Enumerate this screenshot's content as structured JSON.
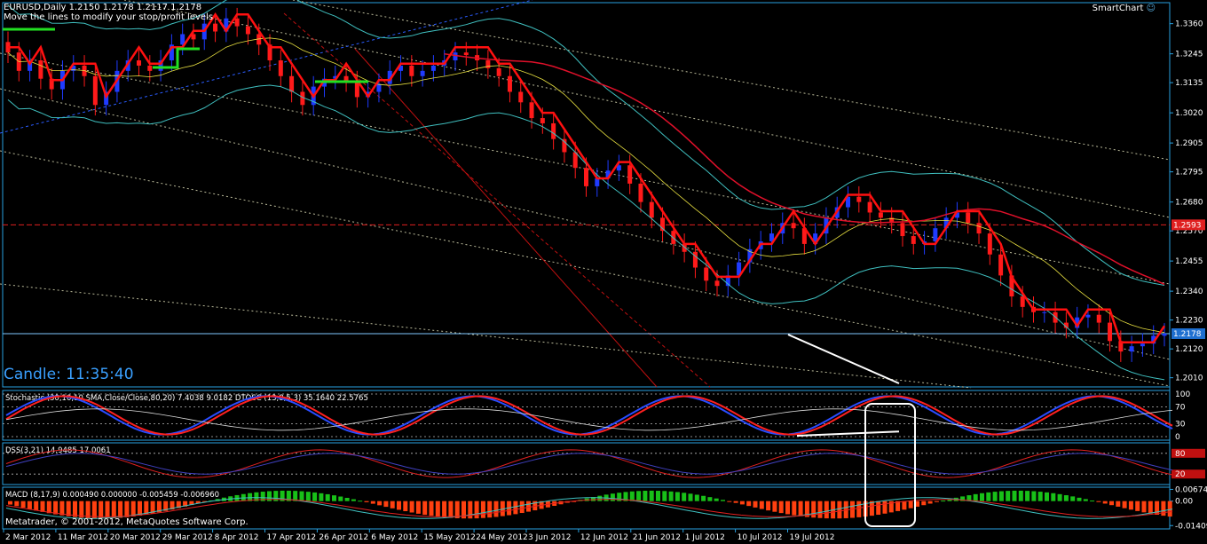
{
  "header": {
    "symbol_line": "EURUSD,Daily  1.2150 1.2178 1.2117 1.2178",
    "hint": "Move the lines to modify your stop/profit levels",
    "smartchart": "SmartChart"
  },
  "candle_timer": "Candle:  11:35:40",
  "copyright": "Metatrader, © 2001-2012, MetaQuotes Software Corp.",
  "colors": {
    "background": "#000000",
    "frame": "#29a0e0",
    "bull": "#1f3bff",
    "bear": "#ff1a1a",
    "trend_red": "#ff1010",
    "trend_green": "#22e022",
    "bands": "#3fbfbf",
    "ma_red": "#e0102a",
    "dotted": "#e8e8c0"
  },
  "chart_data": [
    {
      "type": "line",
      "title": "EURUSD,Daily",
      "price_ticks": [
        "1.3360",
        "1.3245",
        "1.3135",
        "1.3020",
        "1.2905",
        "1.2795",
        "1.2680",
        "1.2570",
        "1.2455",
        "1.2340",
        "1.2230",
        "1.2120",
        "1.2010"
      ],
      "price_ticks_values": [
        1.336,
        1.3245,
        1.3135,
        1.302,
        1.2905,
        1.2795,
        1.268,
        1.257,
        1.2455,
        1.234,
        1.223,
        1.212,
        1.201
      ],
      "ylim": [
        1.1975,
        1.344
      ],
      "date_ticks": [
        "2 Mar 2012",
        "11 Mar 2012",
        "20 Mar 2012",
        "29 Mar 2012",
        "8 Apr 2012",
        "17 Apr 2012",
        "26 Apr 2012",
        "6 May 2012",
        "15 May 2012",
        "24 May 2012",
        "3 Jun 2012",
        "12 Jun 2012",
        "21 Jun 2012",
        "1 Jul 2012",
        "10 Jul 2012",
        "19 Jul 2012"
      ],
      "current_price_label": "1.2178",
      "current_price": 1.2178,
      "level_label": "1.2593",
      "level": 1.2593,
      "close_series": [
        1.325,
        1.318,
        1.322,
        1.315,
        1.311,
        1.318,
        1.32,
        1.316,
        1.305,
        1.31,
        1.318,
        1.322,
        1.32,
        1.318,
        1.322,
        1.328,
        1.332,
        1.33,
        1.336,
        1.333,
        1.338,
        1.335,
        1.332,
        1.328,
        1.322,
        1.316,
        1.31,
        1.305,
        1.312,
        1.315,
        1.316,
        1.314,
        1.308,
        1.31,
        1.313,
        1.318,
        1.32,
        1.316,
        1.318,
        1.32,
        1.322,
        1.325,
        1.324,
        1.322,
        1.319,
        1.316,
        1.31,
        1.306,
        1.3,
        1.298,
        1.292,
        1.287,
        1.281,
        1.274,
        1.277,
        1.28,
        1.282,
        1.275,
        1.268,
        1.262,
        1.257,
        1.252,
        1.249,
        1.243,
        1.238,
        1.236,
        1.24,
        1.245,
        1.25,
        1.253,
        1.256,
        1.26,
        1.258,
        1.252,
        1.256,
        1.262,
        1.266,
        1.27,
        1.268,
        1.264,
        1.262,
        1.26,
        1.255,
        1.252,
        1.253,
        1.258,
        1.262,
        1.264,
        1.26,
        1.256,
        1.248,
        1.24,
        1.232,
        1.228,
        1.226,
        1.226,
        1.222,
        1.22,
        1.224,
        1.225,
        1.222,
        1.215,
        1.211,
        1.213,
        1.214,
        1.217,
        1.2178
      ]
    },
    {
      "type": "line",
      "title": "Stochastic (30,10,10,SMA,Close/Close,80,20) 7.4038 9.0182  DTOSC (13,8,5,3) 35.1640 22.5765",
      "y_ticks": [
        "100",
        "70",
        "30",
        "0"
      ],
      "y_ticks_values": [
        100,
        70,
        30,
        0
      ],
      "ylim": [
        0,
        100
      ]
    },
    {
      "type": "line",
      "title": "DSS(3,21) 14.9485 17.0061",
      "y_ticks": [
        "80",
        "20"
      ],
      "y_ticks_values": [
        80,
        20
      ],
      "ylim": [
        0,
        100
      ]
    },
    {
      "type": "bar",
      "title": "MACD (8,17,9) 0.000490 0.000000 -0.005459 -0.006960",
      "y_ticks": [
        "0.006749",
        "0.00",
        "-0.01409"
      ],
      "y_ticks_values": [
        0.006749,
        0.0,
        -0.01409
      ],
      "ylim": [
        -0.016,
        0.008
      ]
    }
  ]
}
